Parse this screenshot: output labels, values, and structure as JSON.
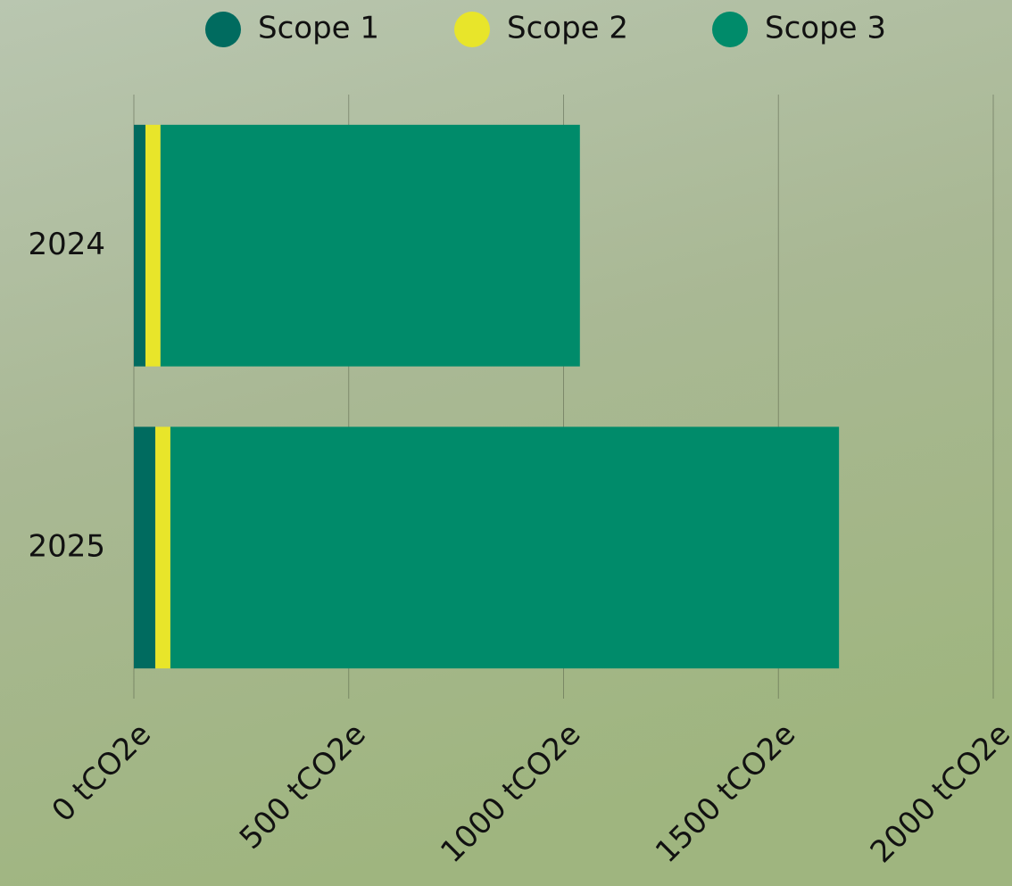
{
  "chart_data": {
    "type": "bar",
    "orientation": "horizontal",
    "stacked": true,
    "categories": [
      "2024",
      "2025"
    ],
    "series": [
      {
        "name": "Scope 1",
        "color": "#006b5f",
        "values": [
          27,
          50
        ]
      },
      {
        "name": "Scope 2",
        "color": "#e8e52a",
        "values": [
          35,
          35
        ]
      },
      {
        "name": "Scope 3",
        "color": "#008b6a",
        "values": [
          976,
          1556
        ]
      }
    ],
    "xlim": [
      0,
      2000
    ],
    "xticks": [
      {
        "value": 0,
        "label": "0 tCO2e"
      },
      {
        "value": 500,
        "label": "500 tCO2e"
      },
      {
        "value": 1000,
        "label": "1000 tCO2e"
      },
      {
        "value": 1500,
        "label": "1500 tCO2e"
      },
      {
        "value": 2000,
        "label": "2000 tCO2e"
      }
    ],
    "grid": true,
    "legend": "top"
  }
}
